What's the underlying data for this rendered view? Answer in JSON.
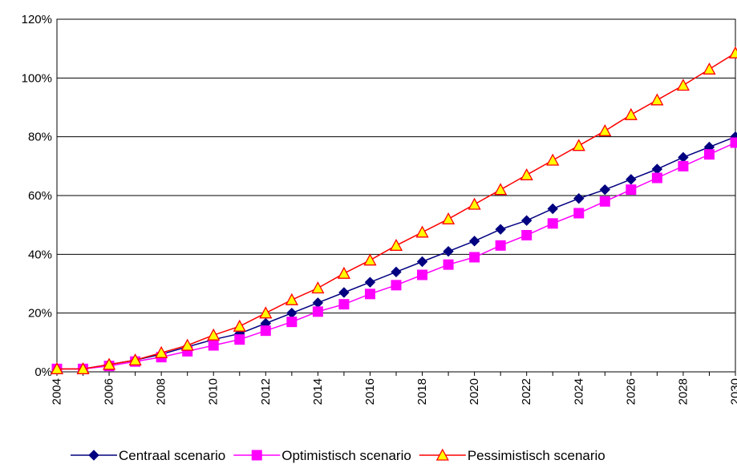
{
  "chart_data": {
    "type": "line",
    "title": "",
    "xlabel": "",
    "ylabel": "",
    "ylim": [
      0,
      120
    ],
    "y_ticks": [
      "0%",
      "20%",
      "40%",
      "60%",
      "80%",
      "100%",
      "120%"
    ],
    "x_tick_labels": [
      "2004",
      "2006",
      "2008",
      "2010",
      "2012",
      "2014",
      "2016",
      "2018",
      "2020",
      "2022",
      "2024",
      "2026",
      "2028",
      "2030"
    ],
    "grid": "horizontal",
    "legend_position": "bottom",
    "x": [
      2004,
      2005,
      2006,
      2007,
      2008,
      2009,
      2010,
      2011,
      2012,
      2013,
      2014,
      2015,
      2016,
      2017,
      2018,
      2019,
      2020,
      2021,
      2022,
      2023,
      2024,
      2025,
      2026,
      2027,
      2028,
      2029,
      2030
    ],
    "series": [
      {
        "name": "Centraal scenario",
        "color": "#000080",
        "marker": "diamond",
        "values": [
          1,
          1,
          2.5,
          4,
          6,
          8.5,
          11,
          13,
          16.5,
          20,
          23.5,
          27,
          30.5,
          34,
          37.5,
          41,
          44.5,
          48.5,
          51.5,
          55.5,
          59,
          62,
          65.5,
          69,
          73,
          76.5,
          80
        ]
      },
      {
        "name": "Optimistisch scenario",
        "color": "#FF00FF",
        "marker": "square",
        "values": [
          1,
          1,
          2,
          3.5,
          5,
          7,
          9,
          11,
          14,
          17,
          20.5,
          23,
          26.5,
          29.5,
          33,
          36.5,
          39,
          43,
          46.5,
          50.5,
          54,
          58,
          62,
          66,
          70,
          74,
          78
        ]
      },
      {
        "name": "Pessimistisch scenario",
        "color": "#FF0000",
        "marker": "triangle",
        "marker_fill": "#FFFF00",
        "values": [
          1,
          1,
          2.5,
          4,
          6.5,
          9,
          12.5,
          15.5,
          20,
          24.5,
          28.5,
          33.5,
          38,
          43,
          47.5,
          52,
          57,
          62,
          67,
          72,
          77,
          82,
          87.5,
          92.5,
          97.5,
          103,
          108.5
        ]
      }
    ]
  }
}
